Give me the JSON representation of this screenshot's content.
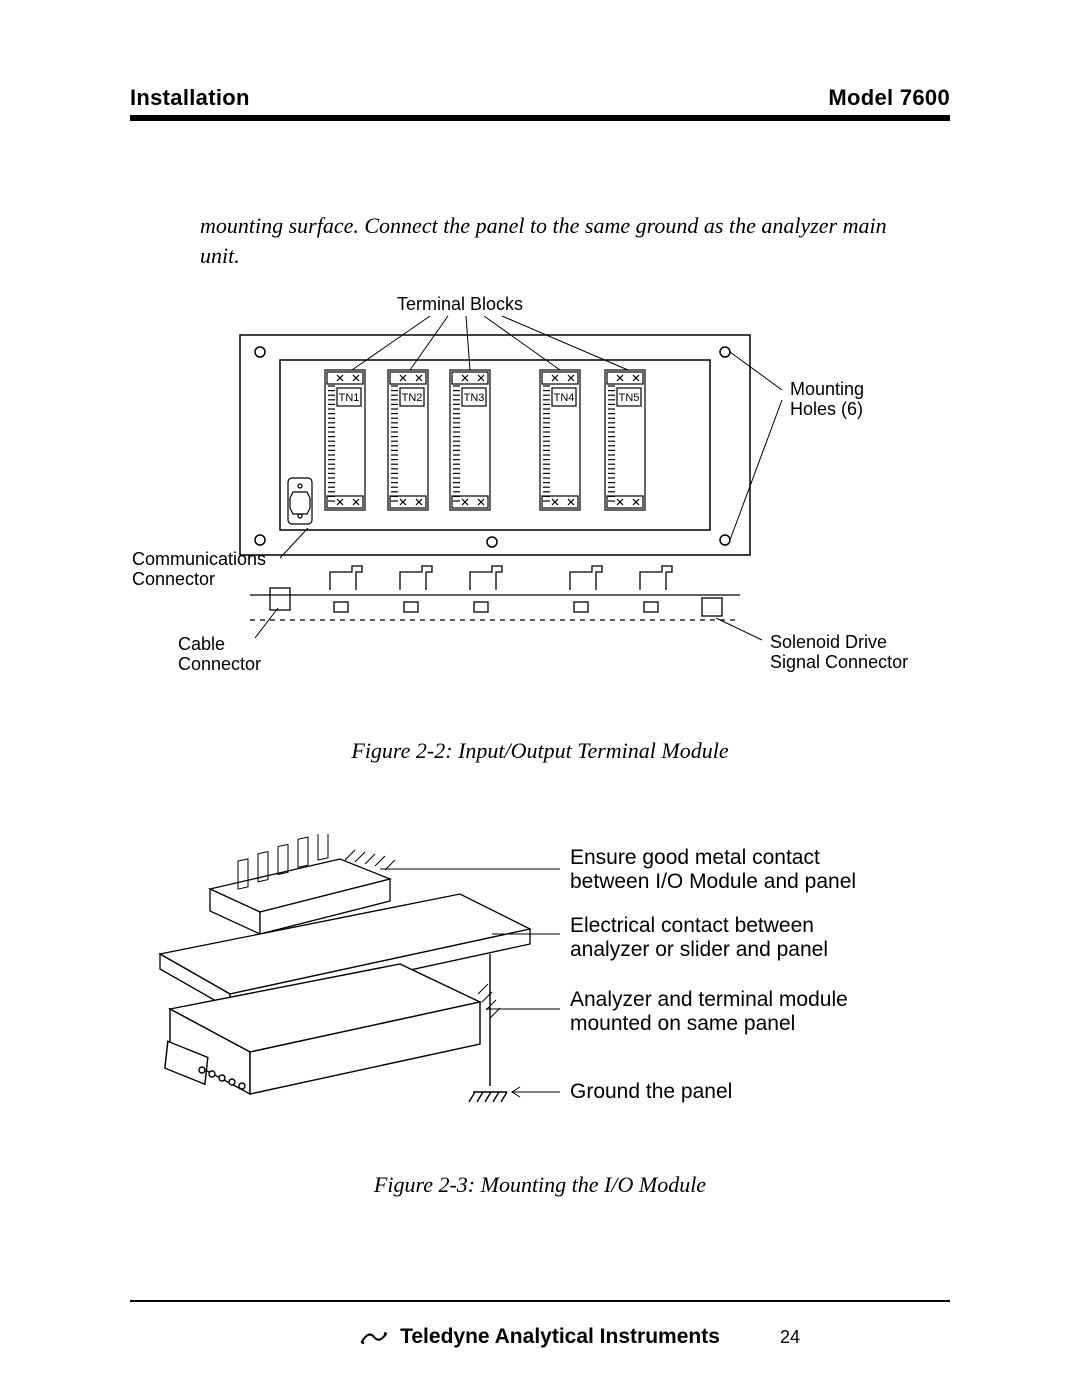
{
  "header": {
    "left": "Installation",
    "right": "Model 7600"
  },
  "body_paragraph": "mounting surface.  Connect the panel to the same ground as the analyzer main unit.",
  "figure1": {
    "top_label": "Terminal Blocks",
    "terminals": [
      "TN1",
      "TN2",
      "TN3",
      "TN4",
      "TN5"
    ],
    "labels": {
      "mounting_holes": "Mounting\nHoles (6)",
      "communications_connector": "Communications\nConnector",
      "cable_connector": "Cable\nConnector",
      "solenoid_drive": "Solenoid Drive\nSignal Connector"
    },
    "caption": "Figure 2-2: Input/Output Terminal Module",
    "style": {
      "stroke": "#000000",
      "text_color": "#000000",
      "label_fontsize": 18,
      "tn_fontsize": 11,
      "background": "#ffffff"
    }
  },
  "figure2": {
    "notes": [
      "Ensure good metal contact between I/O Module and panel",
      "Electrical contact between analyzer or slider  and panel",
      "Analyzer and terminal module mounted on same panel",
      "Ground the panel"
    ],
    "caption": "Figure 2-3: Mounting the I/O Module",
    "style": {
      "stroke": "#000000",
      "text_color": "#000000",
      "note_fontsize": 21,
      "background": "#ffffff"
    }
  },
  "footer": {
    "brand": "Teledyne Analytical Instruments",
    "page_number": "24"
  }
}
